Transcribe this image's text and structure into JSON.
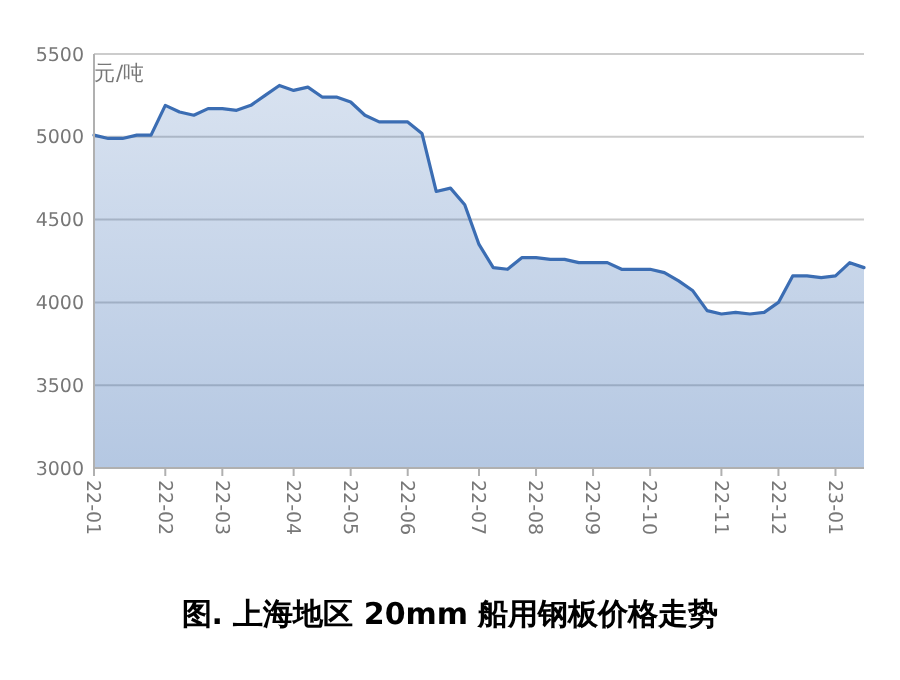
{
  "chart_data": {
    "type": "area",
    "title": "图. 上海地区 20mm 船用钢板价格走势",
    "ylabel": "元/吨",
    "categories": [
      "22-01",
      null,
      null,
      null,
      null,
      "22-02",
      null,
      null,
      null,
      "22-03",
      null,
      null,
      null,
      null,
      "22-04",
      null,
      null,
      null,
      "22-05",
      null,
      null,
      null,
      "22-06",
      null,
      null,
      null,
      null,
      "22-07",
      null,
      null,
      null,
      "22-08",
      null,
      null,
      null,
      "22-09",
      null,
      null,
      null,
      "22-10",
      null,
      null,
      null,
      null,
      "22-11",
      null,
      null,
      null,
      "22-12",
      null,
      null,
      null,
      "23-01",
      null,
      null
    ],
    "series": [
      {
        "color": "#3b6db3",
        "values": [
          5010,
          4990,
          4990,
          5010,
          5010,
          5190,
          5150,
          5130,
          5170,
          5170,
          5160,
          5190,
          5250,
          5310,
          5280,
          5300,
          5240,
          5240,
          5210,
          5130,
          5090,
          5090,
          5090,
          5020,
          4670,
          4690,
          4590,
          4350,
          4210,
          4200,
          4270,
          4270,
          4260,
          4260,
          4240,
          4240,
          4240,
          4200,
          4200,
          4200,
          4180,
          4130,
          4070,
          3950,
          3930,
          3940,
          3930,
          3940,
          4000,
          4160,
          4160,
          4150,
          4160,
          4240,
          4210
        ]
      }
    ],
    "ylim": [
      3000,
      5500
    ],
    "yticks": [
      3000,
      3500,
      4000,
      4500,
      5000,
      5500
    ],
    "grid": "y",
    "marker": "none",
    "line_style": "solid"
  }
}
